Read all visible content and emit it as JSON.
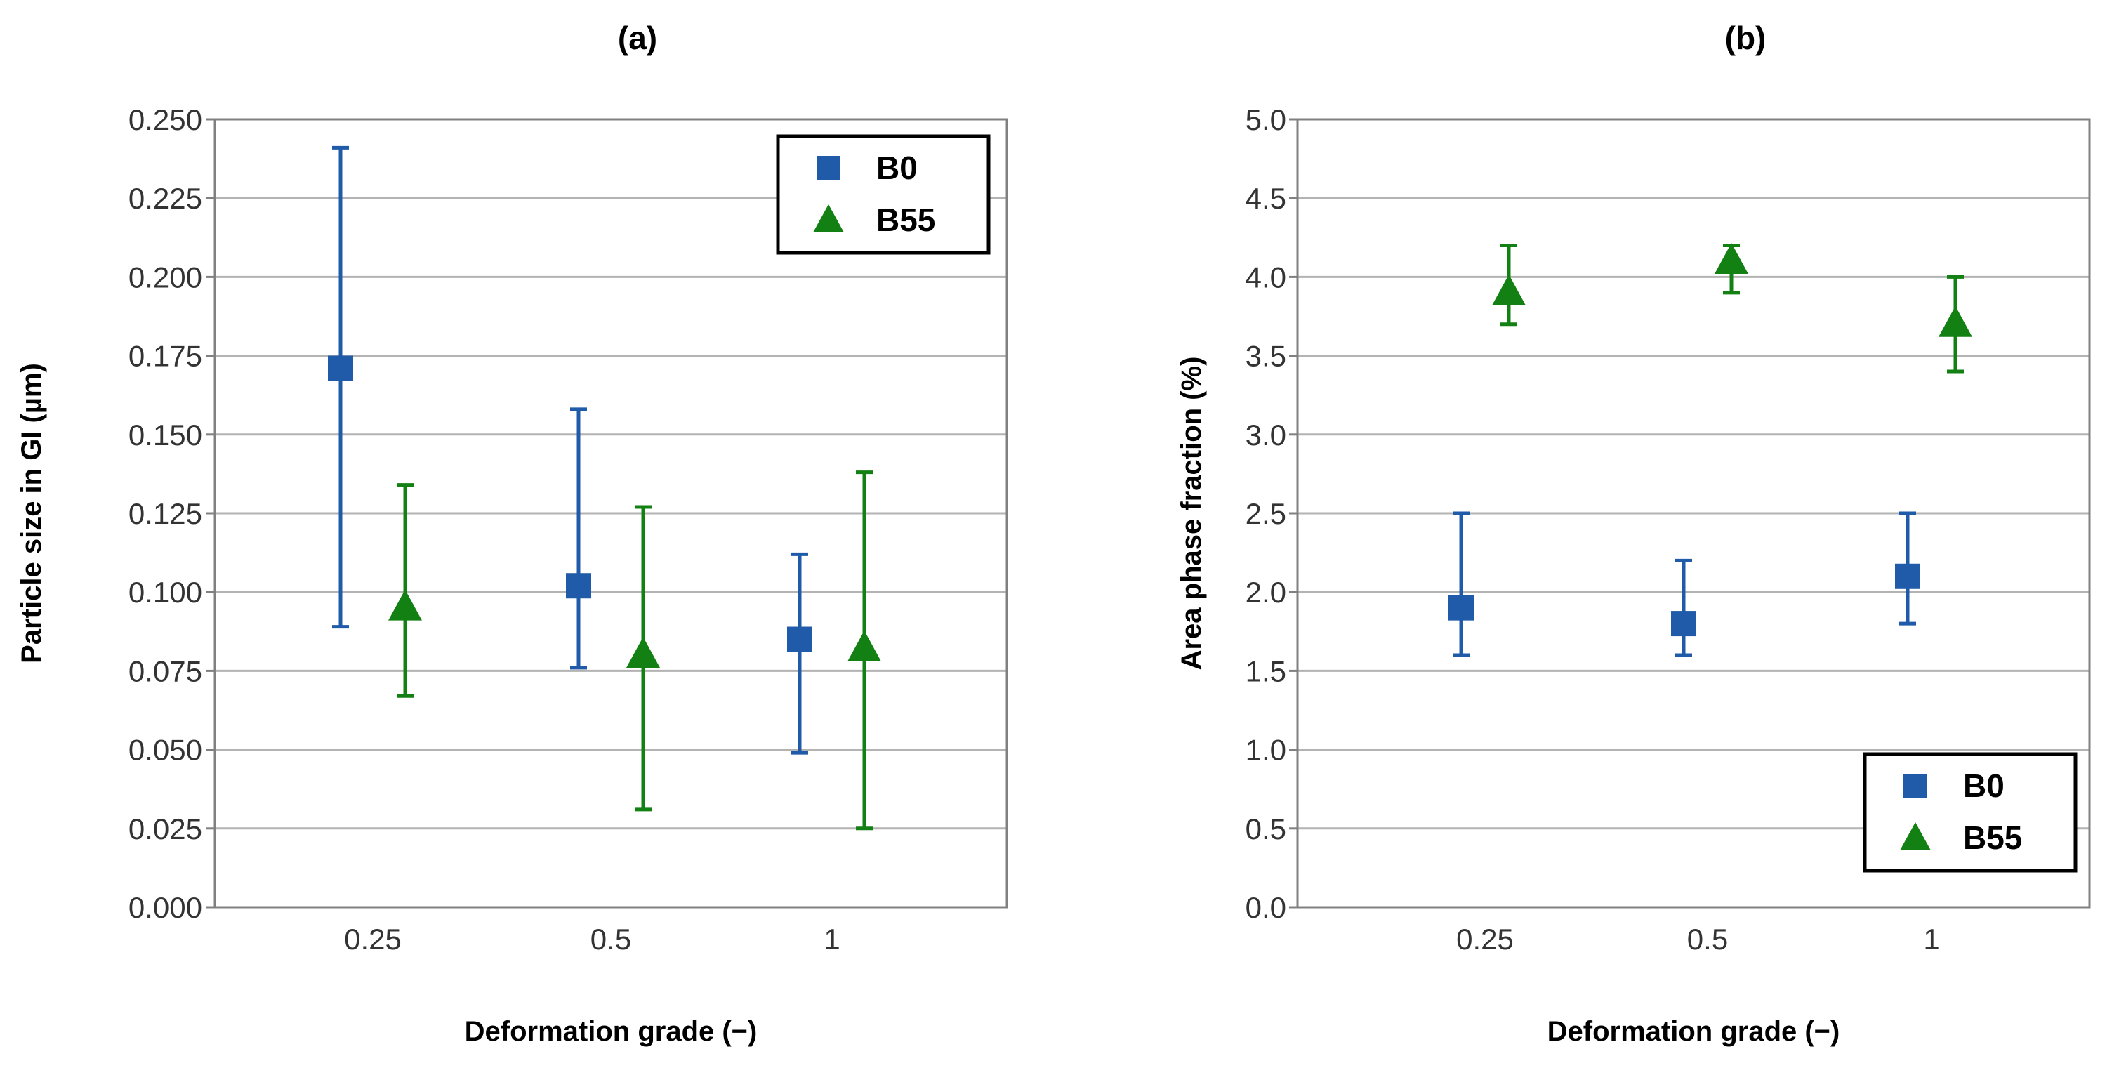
{
  "colors": {
    "B0": "#1f5ba8",
    "B55": "#138013",
    "grid": "#b3b3b3",
    "frame": "#808080"
  },
  "chart_data": [
    {
      "id": "a",
      "type": "scatter",
      "panel_label": "(a)",
      "xlabel": "Deformation grade (−)",
      "ylabel": "Particle size in GI (µm)",
      "categories": [
        "0.25",
        "0.5",
        "1"
      ],
      "ylim": [
        0,
        0.25
      ],
      "yticks": [
        0,
        0.025,
        0.05,
        0.075,
        0.1,
        0.125,
        0.15,
        0.175,
        0.2,
        0.225,
        0.25
      ],
      "ytick_labels": [
        "0.000",
        "0.025",
        "0.050",
        "0.075",
        "0.100",
        "0.125",
        "0.150",
        "0.175",
        "0.200",
        "0.225",
        "0.250"
      ],
      "grid": true,
      "legend": {
        "position": "top-right",
        "entries": [
          "B0",
          "B55"
        ]
      },
      "series": [
        {
          "name": "B0",
          "marker": "square",
          "values": [
            0.171,
            0.102,
            0.085
          ],
          "err_low": [
            0.089,
            0.076,
            0.049
          ],
          "err_high": [
            0.241,
            0.158,
            0.112
          ]
        },
        {
          "name": "B55",
          "marker": "triangle",
          "values": [
            0.095,
            0.08,
            0.082
          ],
          "err_low": [
            0.067,
            0.031,
            0.025
          ],
          "err_high": [
            0.134,
            0.127,
            0.138
          ]
        }
      ]
    },
    {
      "id": "b",
      "type": "scatter",
      "panel_label": "(b)",
      "xlabel": "Deformation grade (−)",
      "ylabel": "Area phase fraction (%)",
      "categories": [
        "0.25",
        "0.5",
        "1"
      ],
      "ylim": [
        0,
        5
      ],
      "yticks": [
        0,
        0.5,
        1,
        1.5,
        2,
        2.5,
        3,
        3.5,
        4,
        4.5,
        5
      ],
      "ytick_labels": [
        "0.0",
        "0.5",
        "1.0",
        "1.5",
        "2.0",
        "2.5",
        "3.0",
        "3.5",
        "4.0",
        "4.5",
        "5.0"
      ],
      "grid": true,
      "legend": {
        "position": "bottom-right",
        "entries": [
          "B0",
          "B55"
        ]
      },
      "series": [
        {
          "name": "B0",
          "marker": "square",
          "values": [
            1.9,
            1.8,
            2.1
          ],
          "err_low": [
            1.6,
            1.6,
            1.8
          ],
          "err_high": [
            2.5,
            2.2,
            2.5
          ]
        },
        {
          "name": "B55",
          "marker": "triangle",
          "values": [
            3.9,
            4.1,
            3.7
          ],
          "err_low": [
            3.7,
            3.9,
            3.4
          ],
          "err_high": [
            4.2,
            4.2,
            4.0
          ]
        }
      ]
    }
  ]
}
